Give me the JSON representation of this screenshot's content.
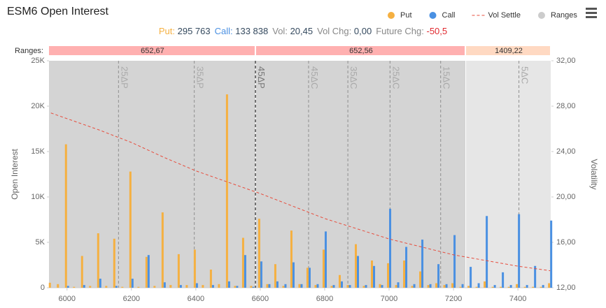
{
  "chart_data": {
    "type": "bar",
    "title": "ESM6 Open Interest",
    "info": [
      {
        "label": "Put:",
        "value": "295 763",
        "label_color": "#f5b041",
        "value_color": "#34495e"
      },
      {
        "label": "Call:",
        "value": "133 838",
        "label_color": "#4a90e2",
        "value_color": "#34495e"
      },
      {
        "label": "Vol:",
        "value": "20,45",
        "label_color": "#888888",
        "value_color": "#34495e"
      },
      {
        "label": "Vol Chg:",
        "value": "0,00",
        "label_color": "#888888",
        "value_color": "#34495e"
      },
      {
        "label": "Future Chg:",
        "value": "-50,5",
        "label_color": "#888888",
        "value_color": "#e0282e"
      }
    ],
    "legend": "top-right",
    "ylabel": "Open Interest",
    "y2label": "Volatility",
    "xlim": [
      5944,
      7504
    ],
    "xticks": [
      6000,
      6200,
      6400,
      6600,
      6800,
      7000,
      7200,
      7400
    ],
    "ylim": [
      0,
      25000
    ],
    "yticks": [
      0,
      {
        "value": 5000,
        "label": "5K"
      },
      {
        "value": 10000,
        "label": "10K"
      },
      {
        "value": 15000,
        "label": "15K"
      },
      {
        "value": 20000,
        "label": "20K"
      },
      {
        "value": 25000,
        "label": "25K"
      }
    ],
    "y2lim": [
      12,
      32
    ],
    "y2ticks": [
      {
        "value": 12,
        "label": "12,00"
      },
      {
        "value": 16,
        "label": "16,00"
      },
      {
        "value": 20,
        "label": "20,00"
      },
      {
        "value": 24,
        "label": "24,00"
      },
      {
        "value": 28,
        "label": "28,00"
      },
      {
        "value": 32,
        "label": "32,00"
      }
    ],
    "x": [
      5950,
      5975,
      6000,
      6025,
      6050,
      6075,
      6100,
      6125,
      6150,
      6175,
      6200,
      6225,
      6250,
      6275,
      6300,
      6325,
      6350,
      6375,
      6400,
      6425,
      6450,
      6475,
      6500,
      6525,
      6550,
      6575,
      6600,
      6625,
      6650,
      6675,
      6700,
      6725,
      6750,
      6775,
      6800,
      6825,
      6850,
      6875,
      6900,
      6925,
      6950,
      6975,
      7000,
      7025,
      7050,
      7075,
      7100,
      7125,
      7150,
      7175,
      7200,
      7225,
      7250,
      7275,
      7300,
      7325,
      7350,
      7375,
      7400,
      7425,
      7450,
      7475,
      7500
    ],
    "series": [
      {
        "name": "Put",
        "color": "#f5b041",
        "values": [
          550,
          400,
          15800,
          100,
          3500,
          200,
          6000,
          200,
          5400,
          100,
          12800,
          100,
          3400,
          200,
          8300,
          300,
          3700,
          300,
          4200,
          300,
          2000,
          400,
          21300,
          200,
          5500,
          200,
          7600,
          400,
          2600,
          200,
          6300,
          400,
          2200,
          300,
          4200,
          200,
          1400,
          300,
          4800,
          200,
          3000,
          400,
          2700,
          300,
          3000,
          200,
          1800,
          300,
          500,
          300,
          500,
          100,
          200,
          100,
          700,
          100,
          100,
          100,
          400,
          100,
          100,
          100,
          500
        ]
      },
      {
        "name": "Call",
        "color": "#4a90e2",
        "values": [
          0,
          0,
          200,
          0,
          300,
          0,
          1000,
          0,
          200,
          0,
          1000,
          0,
          3600,
          0,
          600,
          0,
          300,
          0,
          500,
          0,
          300,
          0,
          700,
          200,
          3600,
          100,
          2900,
          400,
          700,
          400,
          2800,
          400,
          2200,
          400,
          6200,
          300,
          700,
          300,
          3500,
          300,
          2400,
          300,
          8700,
          600,
          4500,
          400,
          5300,
          400,
          2600,
          400,
          5800,
          400,
          2300,
          500,
          7900,
          300,
          1700,
          300,
          8100,
          300,
          2400,
          300,
          7400
        ]
      },
      {
        "name": "Vol Settle",
        "type": "line",
        "axis": "y2",
        "color": "#e74c3c",
        "x": [
          5950,
          6100,
          6200,
          6300,
          6400,
          6500,
          6600,
          6700,
          6800,
          6900,
          7000,
          7100,
          7200,
          7300,
          7400,
          7500
        ],
        "values": [
          27.4,
          25.9,
          24.8,
          23.5,
          22.3,
          21.3,
          20.3,
          19.2,
          18.1,
          17.2,
          16.3,
          15.6,
          14.9,
          14.4,
          13.9,
          13.5
        ]
      }
    ],
    "ranges": {
      "name": "Ranges",
      "title": "Ranges:",
      "color": "#cccccc",
      "items": [
        {
          "start": 5935,
          "end": 6587,
          "value": 652.67,
          "label": "652,67",
          "color": "#ffb0b0",
          "shade": "#d4d4d4"
        },
        {
          "start": 6587,
          "end": 7239,
          "value": 652.56,
          "label": "652,56",
          "color": "#ffb0b0",
          "shade": "#d4d4d4"
        },
        {
          "start": 7239,
          "end": 8648,
          "value": 1409.22,
          "label": "1409,22",
          "color": "#ffd9c2",
          "shade": "#e6e6e6"
        }
      ]
    },
    "delta_lines": [
      {
        "x": 6160,
        "label": "25ΔP",
        "color": "#9a9a9a"
      },
      {
        "x": 6395,
        "label": "35ΔP",
        "color": "#9a9a9a"
      },
      {
        "x": 6585,
        "label": "45ΔP",
        "color": "#222222"
      },
      {
        "x": 6750,
        "label": "45ΔC",
        "color": "#9a9a9a"
      },
      {
        "x": 6872,
        "label": "35ΔC",
        "color": "#9a9a9a"
      },
      {
        "x": 7003,
        "label": "25ΔC",
        "color": "#9a9a9a"
      },
      {
        "x": 7160,
        "label": "15ΔC",
        "color": "#9a9a9a"
      },
      {
        "x": 7403,
        "label": "5ΔC",
        "color": "#9a9a9a"
      }
    ]
  }
}
